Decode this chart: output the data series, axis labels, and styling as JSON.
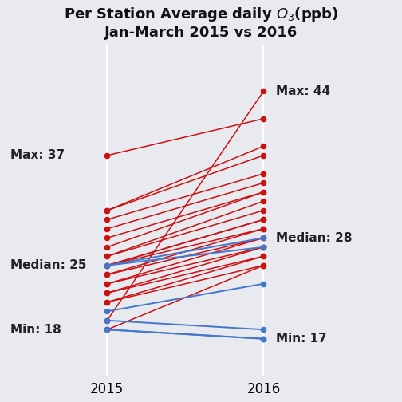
{
  "background_color": "#e8eaf0",
  "red_color": "#cc1111",
  "blue_color": "#4477cc",
  "annotation_left": [
    {
      "label": "Max: 37",
      "y": 37
    },
    {
      "label": "Median: 25",
      "y": 25
    },
    {
      "label": "Min: 18",
      "y": 18
    }
  ],
  "annotation_right": [
    {
      "label": "Max: 44",
      "y": 44
    },
    {
      "label": "Median: 28",
      "y": 28
    },
    {
      "label": "Min: 17",
      "y": 17
    }
  ],
  "pairs_red": [
    [
      37,
      41
    ],
    [
      31,
      38
    ],
    [
      31,
      37
    ],
    [
      30,
      35
    ],
    [
      29,
      34
    ],
    [
      28,
      33
    ],
    [
      27,
      33
    ],
    [
      26,
      32
    ],
    [
      26,
      31
    ],
    [
      25,
      30
    ],
    [
      25,
      30
    ],
    [
      25,
      29
    ],
    [
      24,
      29
    ],
    [
      24,
      28
    ],
    [
      23,
      28
    ],
    [
      23,
      27
    ],
    [
      22,
      27
    ],
    [
      22,
      26
    ],
    [
      21,
      26
    ],
    [
      21,
      25
    ],
    [
      19,
      44
    ],
    [
      18,
      25
    ]
  ],
  "pairs_blue": [
    [
      25,
      28
    ],
    [
      25,
      27
    ],
    [
      20,
      23
    ],
    [
      19,
      18
    ],
    [
      18,
      17
    ],
    [
      18,
      17
    ]
  ],
  "ylim": [
    13,
    49
  ],
  "xlim": [
    2014.35,
    2016.85
  ],
  "xticks": [
    2015,
    2016
  ],
  "dot_size": 5.5,
  "title_fontsize": 13,
  "annotation_fontsize": 11,
  "xtick_fontsize": 12
}
